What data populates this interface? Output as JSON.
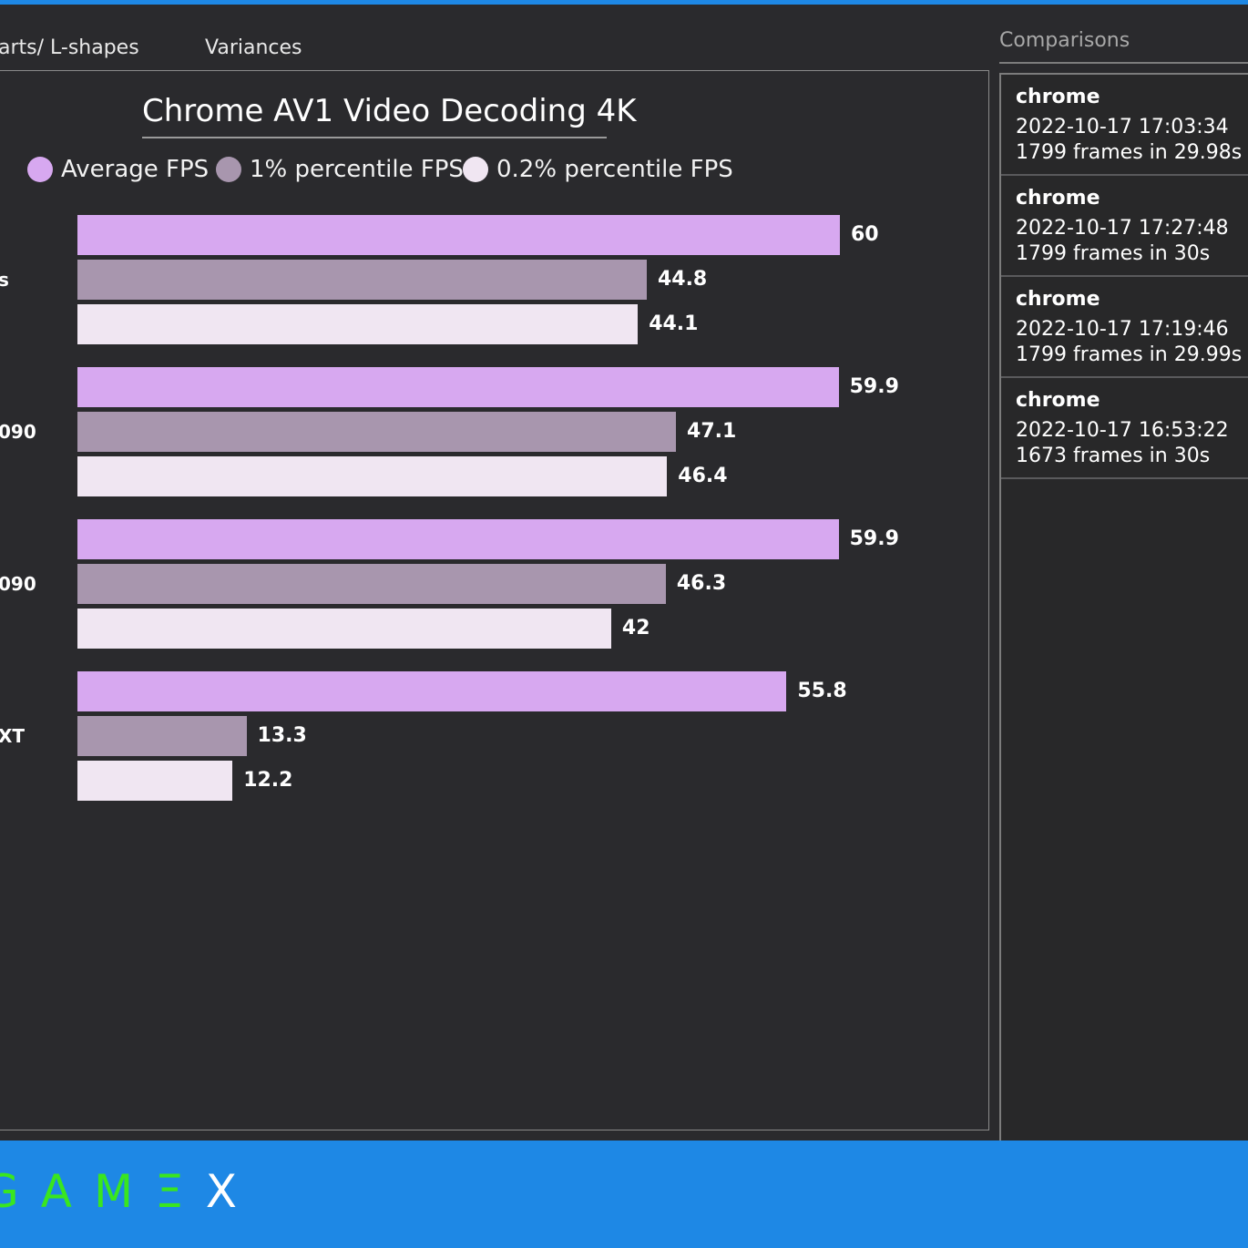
{
  "tabs": [
    {
      "label": "arts/ L-shapes"
    },
    {
      "label": "Variances"
    }
  ],
  "chart": {
    "title": "Chrome AV1 Video Decoding 4K"
  },
  "chart_data": {
    "type": "bar",
    "orientation": "horizontal",
    "title": "Chrome AV1 Video Decoding 4K",
    "categories": [
      "s",
      "090",
      "090",
      "XT"
    ],
    "series": [
      {
        "name": "Average FPS",
        "color": "#d7a8f0",
        "values": [
          60,
          59.9,
          59.9,
          55.8
        ]
      },
      {
        "name": "1% percentile FPS",
        "color": "#a896ae",
        "values": [
          44.8,
          47.1,
          46.3,
          13.3
        ]
      },
      {
        "name": "0.2% percentile FPS",
        "color": "#f0e6f2",
        "values": [
          44.1,
          46.4,
          42,
          12.2
        ]
      }
    ],
    "value_labels": [
      [
        "60",
        "44.8",
        "44.1"
      ],
      [
        "59.9",
        "47.1",
        "46.4"
      ],
      [
        "59.9",
        "46.3",
        "42"
      ],
      [
        "55.8",
        "13.3",
        "12.2"
      ]
    ],
    "xlim": [
      0,
      60
    ],
    "grid": false,
    "legend_position": "top"
  },
  "sidebar": {
    "header": "Comparisons",
    "items": [
      {
        "name": "chrome",
        "date": "2022-10-17 17:03:34",
        "frames": "1799 frames in 29.98s"
      },
      {
        "name": "chrome",
        "date": "2022-10-17 17:27:48",
        "frames": "1799 frames in 30s"
      },
      {
        "name": "chrome",
        "date": "2022-10-17 17:19:46",
        "frames": "1799 frames in 29.99s"
      },
      {
        "name": "chrome",
        "date": "2022-10-17 16:53:22",
        "frames": "1673 frames in 30s"
      }
    ]
  },
  "footer": {
    "brand_letters": [
      "G",
      "A",
      "M",
      "Ξ",
      "X"
    ],
    "brand_colors": {
      "green": "#39e61f",
      "white": "#ffffff"
    }
  }
}
